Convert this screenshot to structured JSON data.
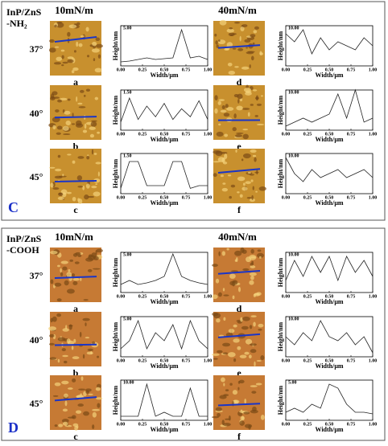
{
  "x_label": "Width/μm",
  "y_label": "Height/nm",
  "xlim": [
    0,
    1
  ],
  "xticks": [
    {
      "value": 0,
      "label": "0.00"
    },
    {
      "value": 0.25,
      "label": "0.25"
    },
    {
      "value": 0.5,
      "label": "0.50"
    },
    {
      "value": 0.75,
      "label": "0.75"
    },
    {
      "value": 1,
      "label": "1.00"
    }
  ],
  "x": [
    0,
    0.1,
    0.2,
    0.3,
    0.4,
    0.5,
    0.6,
    0.7,
    0.8,
    0.9,
    1
  ],
  "panels": [
    {
      "letter": "C",
      "sample": [
        "InP/ZnS",
        "-NH₂"
      ],
      "columns": [
        "10mN/m",
        "40mN/m"
      ],
      "color": "#c8902e",
      "rows": [
        {
          "angle": "37°",
          "items": [
            {
              "label": "a",
              "ylim": [
                0,
                5
              ],
              "yticks": [
                {
                  "value": 5,
                  "label": "5.00"
                }
              ],
              "values": [
                0.5,
                0.6,
                0.8,
                1,
                0.8,
                0.9,
                1,
                4.5,
                1,
                1.2,
                0.8
              ]
            },
            {
              "label": "d",
              "ylim": [
                0,
                10
              ],
              "yticks": [
                {
                  "value": 10,
                  "label": "10.00"
                }
              ],
              "values": [
                8,
                6,
                9,
                3,
                7,
                4,
                6,
                5,
                4,
                7,
                5
              ]
            }
          ]
        },
        {
          "angle": "40°",
          "items": [
            {
              "label": "b",
              "ylim": [
                0,
                1.5
              ],
              "yticks": [
                {
                  "value": 1.5,
                  "label": "1.50"
                }
              ],
              "values": [
                0.3,
                1.2,
                0.4,
                0.9,
                0.5,
                1,
                0.4,
                0.8,
                0.5,
                1.1,
                0.4
              ]
            },
            {
              "label": "e",
              "ylim": [
                0,
                10
              ],
              "yticks": [
                {
                  "value": 10,
                  "label": "10.00"
                }
              ],
              "values": [
                1,
                2,
                3,
                2,
                3,
                4,
                9,
                3,
                10,
                2,
                3
              ]
            }
          ]
        },
        {
          "angle": "45°",
          "items": [
            {
              "label": "c",
              "ylim": [
                0,
                1.5
              ],
              "yticks": [
                {
                  "value": 1.5,
                  "label": "1.50"
                }
              ],
              "values": [
                0.2,
                1.2,
                1.2,
                0.3,
                0.3,
                0.3,
                1.2,
                1.2,
                0.2,
                0.3,
                0.3
              ]
            },
            {
              "label": "f",
              "ylim": [
                0,
                10
              ],
              "yticks": [
                {
                  "value": 10,
                  "label": "10.00"
                }
              ],
              "values": [
                9,
                5,
                3,
                6,
                4,
                5,
                6,
                4,
                5,
                6,
                4
              ]
            }
          ]
        }
      ]
    },
    {
      "letter": "D",
      "sample": [
        "InP/ZnS",
        "-COOH"
      ],
      "columns": [
        "10mN/m",
        "40mN/m"
      ],
      "color": "#c67a34",
      "rows": [
        {
          "angle": "37°",
          "items": [
            {
              "label": "a",
              "ylim": [
                0,
                5
              ],
              "yticks": [
                {
                  "value": 5,
                  "label": "5.00"
                }
              ],
              "values": [
                1,
                1.5,
                1,
                1.2,
                1.5,
                2,
                4.8,
                2,
                1.5,
                1.2,
                1
              ]
            },
            {
              "label": "d",
              "ylim": [
                0,
                10
              ],
              "yticks": [
                {
                  "value": 10,
                  "label": "10.00"
                }
              ],
              "values": [
                3,
                8,
                4,
                9,
                5,
                9,
                3,
                9,
                5,
                8,
                4
              ]
            }
          ]
        },
        {
          "angle": "40°",
          "items": [
            {
              "label": "b",
              "ylim": [
                0,
                5
              ],
              "yticks": [
                {
                  "value": 5,
                  "label": "5.00"
                }
              ],
              "values": [
                1,
                2,
                4.5,
                1,
                3,
                2,
                4,
                1,
                4.5,
                2,
                1
              ]
            },
            {
              "label": "e",
              "ylim": [
                0,
                10
              ],
              "yticks": [
                {
                  "value": 10,
                  "label": "10.00"
                }
              ],
              "values": [
                5,
                3,
                6,
                4,
                9,
                5,
                4,
                6,
                3,
                5,
                1
              ]
            }
          ]
        },
        {
          "angle": "45°",
          "items": [
            {
              "label": "c",
              "ylim": [
                0,
                10
              ],
              "yticks": [
                {
                  "value": 10,
                  "label": "10.00"
                }
              ],
              "values": [
                1,
                1,
                1,
                9,
                1,
                2,
                1,
                1,
                8,
                1,
                1
              ]
            },
            {
              "label": "f",
              "ylim": [
                0,
                5
              ],
              "yticks": [
                {
                  "value": 5,
                  "label": "5.00"
                }
              ],
              "values": [
                1,
                1.5,
                1,
                2,
                1.5,
                4.5,
                4,
                2,
                1,
                1,
                0.8
              ]
            }
          ]
        }
      ]
    }
  ]
}
